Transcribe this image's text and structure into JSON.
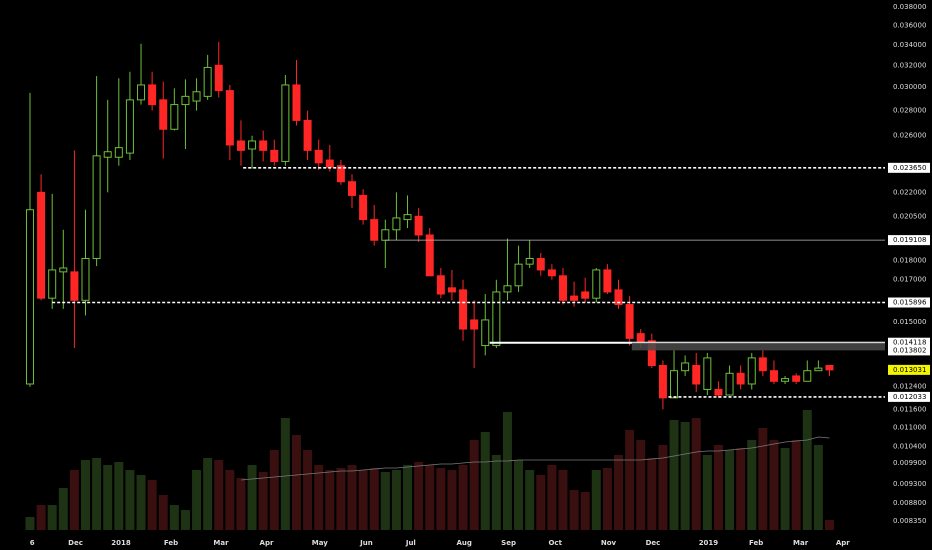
{
  "chart_data": {
    "type": "candlestick",
    "log_scale": true,
    "ylim": [
      0.00766,
      0.0388
    ],
    "xlim": [
      -2.7,
      77.0
    ],
    "vlim": [
      0,
      130
    ],
    "up_color": "#6fbf3a",
    "down_color": "#ff2626",
    "volume_up_color": "#1d3314",
    "volume_down_color": "#3a0f0f",
    "volume_ma_color": "#7a7a7a",
    "last_price_color": "#f5f500",
    "open": [
      0.0125,
      0.022,
      0.0161,
      0.0174,
      0.0174,
      0.016,
      0.0181,
      0.0244,
      0.0244,
      0.0247,
      0.0289,
      0.0302,
      0.0289,
      0.0265,
      0.0285,
      0.0288,
      0.0292,
      0.032,
      0.0297,
      0.0256,
      0.025,
      0.0256,
      0.0249,
      0.0241,
      0.0302,
      0.0272,
      0.0249,
      0.0242,
      0.0238,
      0.0227,
      0.0218,
      0.0203,
      0.0191,
      0.0197,
      0.0203,
      0.0205,
      0.0194,
      0.0172,
      0.0166,
      0.0165,
      0.0151,
      0.014,
      0.014,
      0.0164,
      0.0167,
      0.0178,
      0.0181,
      0.0175,
      0.0172,
      0.0162,
      0.0164,
      0.0161,
      0.0175,
      0.0165,
      0.0158,
      0.0145,
      0.0142,
      0.0132,
      0.012,
      0.013,
      0.0132,
      0.0123,
      0.0123,
      0.0121,
      0.0129,
      0.0125,
      0.0135,
      0.013,
      0.0126,
      0.0128,
      0.0126,
      0.013,
      0.0132
    ],
    "high": [
      0.0295,
      0.0232,
      0.0219,
      0.0197,
      0.0249,
      0.0209,
      0.031,
      0.0289,
      0.0308,
      0.0314,
      0.0341,
      0.0314,
      0.0305,
      0.0299,
      0.0307,
      0.0308,
      0.033,
      0.0343,
      0.0302,
      0.0272,
      0.026,
      0.0264,
      0.0257,
      0.0311,
      0.0325,
      0.028,
      0.0257,
      0.0253,
      0.0242,
      0.0232,
      0.0222,
      0.0212,
      0.0203,
      0.022,
      0.0218,
      0.021,
      0.0198,
      0.0176,
      0.0175,
      0.017,
      0.016,
      0.0163,
      0.017,
      0.0192,
      0.0188,
      0.0191,
      0.0184,
      0.0178,
      0.0176,
      0.0169,
      0.0171,
      0.0176,
      0.0178,
      0.017,
      0.0162,
      0.0147,
      0.0145,
      0.0134,
      0.0138,
      0.0136,
      0.0137,
      0.0137,
      0.0126,
      0.0132,
      0.0132,
      0.0137,
      0.0138,
      0.0134,
      0.0128,
      0.0129,
      0.0134,
      0.0134,
      0.0132
    ],
    "low": [
      0.0124,
      0.016,
      0.0156,
      0.0156,
      0.0139,
      0.0153,
      0.0177,
      0.022,
      0.0238,
      0.0242,
      0.0285,
      0.028,
      0.0243,
      0.0264,
      0.025,
      0.028,
      0.0289,
      0.0291,
      0.0242,
      0.0238,
      0.0236,
      0.0241,
      0.0238,
      0.0238,
      0.0268,
      0.0242,
      0.0235,
      0.0234,
      0.0225,
      0.021,
      0.02,
      0.0188,
      0.0176,
      0.0191,
      0.0198,
      0.019,
      0.0172,
      0.0161,
      0.016,
      0.0142,
      0.0131,
      0.0136,
      0.0139,
      0.016,
      0.0164,
      0.0176,
      0.0172,
      0.017,
      0.0158,
      0.0157,
      0.0159,
      0.0159,
      0.0163,
      0.0156,
      0.014,
      0.0139,
      0.0131,
      0.0116,
      0.012,
      0.0128,
      0.0122,
      0.0121,
      0.012,
      0.0121,
      0.0123,
      0.0123,
      0.0128,
      0.0125,
      0.0125,
      0.0125,
      0.0126,
      0.013,
      0.0128
    ],
    "close": [
      0.0209,
      0.0161,
      0.0175,
      0.0176,
      0.016,
      0.0181,
      0.0245,
      0.0248,
      0.0251,
      0.0289,
      0.0302,
      0.0285,
      0.0265,
      0.0285,
      0.0292,
      0.0296,
      0.0318,
      0.0297,
      0.0253,
      0.0249,
      0.0256,
      0.0249,
      0.0241,
      0.0302,
      0.0272,
      0.0249,
      0.024,
      0.0237,
      0.0227,
      0.0218,
      0.0203,
      0.0191,
      0.0197,
      0.0204,
      0.0206,
      0.0194,
      0.0172,
      0.0163,
      0.0164,
      0.0147,
      0.0147,
      0.0151,
      0.0164,
      0.0167,
      0.0178,
      0.0181,
      0.0175,
      0.0172,
      0.016,
      0.016,
      0.0161,
      0.0175,
      0.0164,
      0.0158,
      0.0143,
      0.0141,
      0.0132,
      0.012,
      0.013,
      0.0133,
      0.0125,
      0.0135,
      0.0121,
      0.0129,
      0.0125,
      0.0135,
      0.013,
      0.0126,
      0.0127,
      0.0126,
      0.013,
      0.0131,
      0.013031
    ],
    "volume": [
      13,
      25,
      25,
      42,
      60,
      70,
      72,
      65,
      68,
      60,
      55,
      50,
      35,
      25,
      20,
      60,
      72,
      70,
      60,
      52,
      65,
      58,
      80,
      112,
      95,
      80,
      65,
      60,
      62,
      65,
      60,
      62,
      58,
      60,
      65,
      68,
      65,
      62,
      60,
      65,
      90,
      98,
      75,
      118,
      70,
      60,
      55,
      65,
      60,
      40,
      38,
      60,
      62,
      75,
      100,
      90,
      72,
      85,
      110,
      108,
      112,
      75,
      85,
      80,
      82,
      90,
      102,
      90,
      82,
      90,
      120,
      85,
      10
    ],
    "volume_ma": [
      null,
      null,
      null,
      null,
      null,
      null,
      null,
      null,
      null,
      null,
      null,
      null,
      null,
      null,
      null,
      null,
      null,
      null,
      null,
      50,
      51,
      52,
      53,
      54,
      55,
      56,
      57,
      58,
      59,
      59,
      60,
      61,
      62,
      62,
      63,
      64,
      65,
      66,
      66,
      67,
      68,
      68,
      69,
      69,
      70,
      70,
      70,
      70,
      70,
      70,
      70,
      70,
      70,
      70,
      70,
      70,
      71,
      72,
      74,
      76,
      78,
      79,
      79,
      80,
      81,
      82,
      84,
      86,
      88,
      89,
      90,
      93,
      92
    ],
    "xticks": [
      {
        "value": 0.2,
        "label": "6"
      },
      {
        "value": 4.1,
        "label": "Dec"
      },
      {
        "value": 8.2,
        "label": "2018"
      },
      {
        "value": 12.7,
        "label": "Feb"
      },
      {
        "value": 17.2,
        "label": "Mar"
      },
      {
        "value": 21.3,
        "label": "Apr"
      },
      {
        "value": 26.1,
        "label": "May"
      },
      {
        "value": 30.3,
        "label": "Jun"
      },
      {
        "value": 34.3,
        "label": "Jul"
      },
      {
        "value": 39.1,
        "label": "Aug"
      },
      {
        "value": 43.1,
        "label": "Sep"
      },
      {
        "value": 47.3,
        "label": "Oct"
      },
      {
        "value": 52.1,
        "label": "Nov"
      },
      {
        "value": 56.1,
        "label": "Dec"
      },
      {
        "value": 61.1,
        "label": "2019"
      },
      {
        "value": 65.4,
        "label": "Feb"
      },
      {
        "value": 69.4,
        "label": "Mar"
      },
      {
        "value": 73.2,
        "label": "Apr"
      }
    ],
    "yticks": [
      {
        "value": 0.038,
        "label": "0.038000"
      },
      {
        "value": 0.036,
        "label": "0.036000"
      },
      {
        "value": 0.034,
        "label": "0.034000"
      },
      {
        "value": 0.032,
        "label": "0.032000"
      },
      {
        "value": 0.03,
        "label": "0.030000"
      },
      {
        "value": 0.028,
        "label": "0.028000"
      },
      {
        "value": 0.026,
        "label": "0.026000"
      },
      {
        "value": 0.022,
        "label": "0.022000"
      },
      {
        "value": 0.0205,
        "label": "0.020500"
      },
      {
        "value": 0.018,
        "label": "0.018000"
      },
      {
        "value": 0.017,
        "label": "0.017000"
      },
      {
        "value": 0.015,
        "label": "0.015000"
      },
      {
        "value": 0.0124,
        "label": "0.012400"
      },
      {
        "value": 0.0116,
        "label": "0.011600"
      },
      {
        "value": 0.011,
        "label": "0.011000"
      },
      {
        "value": 0.0104,
        "label": "0.010400"
      },
      {
        "value": 0.0099,
        "label": "0.009900"
      },
      {
        "value": 0.0093,
        "label": "0.009300"
      },
      {
        "value": 0.0088,
        "label": "0.008800"
      },
      {
        "value": 0.00835,
        "label": "0.008350"
      }
    ],
    "levels": [
      {
        "value": 0.02365,
        "label": "0.023650",
        "x_start": 19.2,
        "style": "dashed"
      },
      {
        "value": 0.019108,
        "label": "0.019108",
        "x_start": 32,
        "style": "thin"
      },
      {
        "value": 0.015896,
        "label": "0.015896",
        "x_start": 2,
        "style": "dashed"
      },
      {
        "value": 0.014118,
        "label": "0.014118",
        "x_start": 41.4,
        "style": "solid"
      },
      {
        "value": 0.013802,
        "label": "0.013802",
        "x_start": 54.2,
        "style": "band"
      },
      {
        "value": 0.012033,
        "label": "0.012033",
        "x_start": 57.5,
        "style": "dashed"
      }
    ]
  }
}
